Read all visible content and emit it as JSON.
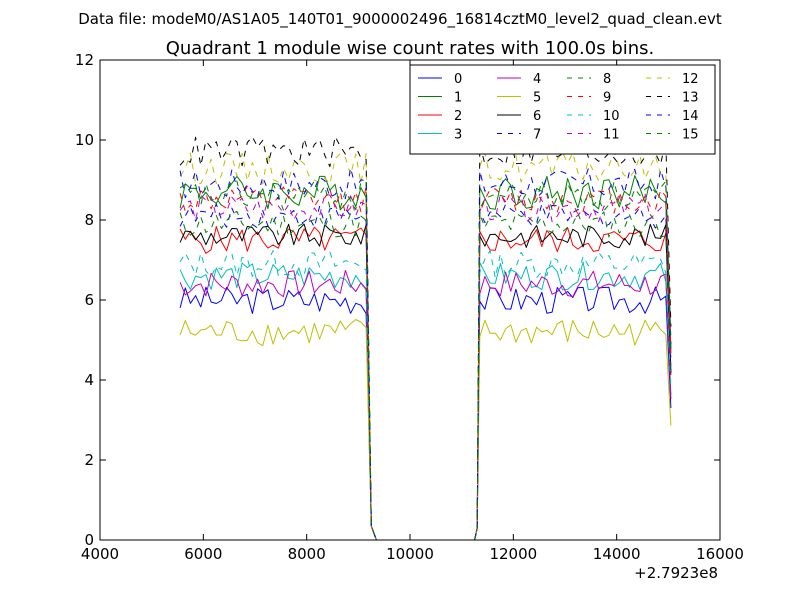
{
  "suptitle": "Data file: modeM0/AS1A05_140T01_9000002496_16814cztM0_level2_quad_clean.evt",
  "chart_data": {
    "type": "line",
    "title": "Quadrant 1 module wise count rates with 100.0s bins.",
    "xlabel": "",
    "ylabel": "",
    "xlim": [
      4000,
      16000
    ],
    "ylim": [
      0,
      12
    ],
    "x_ticks": [
      4000,
      6000,
      8000,
      10000,
      12000,
      14000,
      16000
    ],
    "y_ticks": [
      0,
      2,
      4,
      6,
      8,
      10,
      12
    ],
    "x_tick_labels": [
      "4000",
      "6000",
      "8000",
      "10000",
      "12000",
      "14000",
      "16000"
    ],
    "y_tick_labels": [
      "0",
      "2",
      "4",
      "6",
      "8",
      "10",
      "12"
    ],
    "x_offset_label": "+2.7923e8",
    "grid": false,
    "legend_location": "top-right",
    "legend_columns": 4,
    "segments": [
      {
        "x_start": 5550,
        "x_end": 9150,
        "step": 100
      },
      {
        "x_start": 11350,
        "x_end": 14950,
        "step": 100
      }
    ],
    "gap": {
      "x_start": 9250,
      "x_end": 11250,
      "value": 0
    },
    "series": [
      {
        "name": "0",
        "color": "#0000ff",
        "style": "solid",
        "level": 6.0,
        "amp": 0.35
      },
      {
        "name": "1",
        "color": "#008000",
        "style": "solid",
        "level": 8.7,
        "amp": 0.45
      },
      {
        "name": "2",
        "color": "#ff0000",
        "style": "solid",
        "level": 7.5,
        "amp": 0.35
      },
      {
        "name": "3",
        "color": "#00bfbf",
        "style": "solid",
        "level": 6.6,
        "amp": 0.35
      },
      {
        "name": "4",
        "color": "#bf00bf",
        "style": "solid",
        "level": 6.4,
        "amp": 0.35
      },
      {
        "name": "5",
        "color": "#bfbf00",
        "style": "solid",
        "level": 5.2,
        "amp": 0.35
      },
      {
        "name": "6",
        "color": "#000000",
        "style": "solid",
        "level": 7.6,
        "amp": 0.3
      },
      {
        "name": "7",
        "color": "#0000ff",
        "style": "dashed",
        "level": 8.1,
        "amp": 0.3
      },
      {
        "name": "8",
        "color": "#008000",
        "style": "dashed",
        "level": 7.9,
        "amp": 0.35
      },
      {
        "name": "9",
        "color": "#ff0000",
        "style": "dashed",
        "level": 8.5,
        "amp": 0.35
      },
      {
        "name": "10",
        "color": "#00bfbf",
        "style": "dashed",
        "level": 6.9,
        "amp": 0.35
      },
      {
        "name": "11",
        "color": "#bf00bf",
        "style": "dashed",
        "level": 8.3,
        "amp": 0.35
      },
      {
        "name": "12",
        "color": "#bfbf00",
        "style": "dashed",
        "level": 9.3,
        "amp": 0.4
      },
      {
        "name": "13",
        "color": "#000000",
        "style": "dashed",
        "level": 9.7,
        "amp": 0.4
      },
      {
        "name": "14",
        "color": "#0000ff",
        "style": "dashed",
        "level": 8.9,
        "amp": 0.4
      },
      {
        "name": "15",
        "color": "#008000",
        "style": "dashed",
        "level": 8.6,
        "amp": 0.4
      }
    ]
  }
}
